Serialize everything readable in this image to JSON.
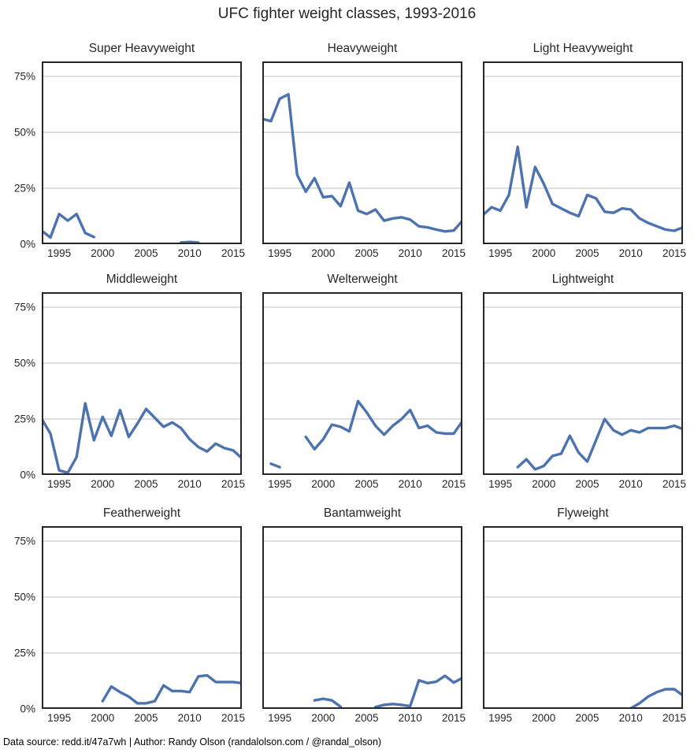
{
  "page": {
    "title": "UFC fighter weight classes, 1993-2016",
    "footer": "Data source: redd.it/47a7wh | Author: Randy Olson (randalolson.com / @randal_olson)"
  },
  "style": {
    "line_color": "#4c72b0",
    "grid_color": "#cccccc",
    "spine_color": "#262626",
    "background_color": "#ffffff"
  },
  "chart_data": {
    "type": "line",
    "layout": "3x3-small-multiples",
    "title": "UFC fighter weight classes, 1993-2016",
    "xlabel": "",
    "ylabel": "",
    "x_range": [
      1993,
      2016
    ],
    "ylim": [
      0,
      81.7
    ],
    "x_ticks": [
      1995,
      2000,
      2005,
      2010,
      2015
    ],
    "y_ticks": [
      {
        "value": 0,
        "label": "0%"
      },
      {
        "value": 25,
        "label": "25%"
      },
      {
        "value": 50,
        "label": "50%"
      },
      {
        "value": 75,
        "label": "75%"
      }
    ],
    "grid": "horizontal-only",
    "legend": "none",
    "charts": [
      {
        "title": "Super Heavyweight",
        "segments": [
          {
            "x": [
              1993,
              1994,
              1995,
              1996,
              1997,
              1998,
              1999
            ],
            "y": [
              6,
              3,
              13.5,
              10.5,
              13.5,
              5,
              3.2
            ]
          },
          {
            "x": [
              2009,
              2010,
              2011
            ],
            "y": [
              0.7,
              1,
              0.7
            ]
          }
        ]
      },
      {
        "title": "Heavyweight",
        "segments": [
          {
            "x": [
              1993,
              1994,
              1995,
              1996,
              1997,
              1998,
              1999,
              2000,
              2001,
              2002,
              2003,
              2004,
              2005,
              2006,
              2007,
              2008,
              2009,
              2010,
              2011,
              2012,
              2013,
              2014,
              2015,
              2016
            ],
            "y": [
              56,
              55,
              65,
              67,
              31,
              23.5,
              29.5,
              21,
              21.5,
              17,
              27.5,
              15,
              13.5,
              15.5,
              10.5,
              11.5,
              12,
              11,
              8,
              7.5,
              6.5,
              5.7,
              6.1,
              10.5
            ]
          }
        ]
      },
      {
        "title": "Light Heavyweight",
        "segments": [
          {
            "x": [
              1993,
              1994,
              1995,
              1996,
              1997,
              1998,
              1999,
              2000,
              2001,
              2002,
              2003,
              2004,
              2005,
              2006,
              2007,
              2008,
              2009,
              2010,
              2011,
              2012,
              2013,
              2014,
              2015,
              2016
            ],
            "y": [
              13,
              16.5,
              15,
              22,
              43.5,
              16.5,
              34.5,
              27,
              18,
              16,
              14,
              12.5,
              22,
              20.5,
              14.5,
              14,
              16,
              15.5,
              11.5,
              9.5,
              8,
              6.5,
              6,
              7.5
            ]
          }
        ]
      },
      {
        "title": "Middleweight",
        "segments": [
          {
            "x": [
              1993,
              1994,
              1995,
              1996,
              1997,
              1998,
              1999,
              2000,
              2001,
              2002,
              2003,
              2004,
              2005,
              2006,
              2007,
              2008,
              2009,
              2010,
              2011,
              2012,
              2013,
              2014,
              2015,
              2016
            ],
            "y": [
              25,
              18.5,
              2,
              1,
              8,
              32,
              15.5,
              26,
              17.5,
              29,
              17,
              23,
              29.5,
              25.5,
              21.5,
              23.5,
              21,
              16,
              12.5,
              10.5,
              14,
              12,
              11,
              7.5
            ]
          }
        ]
      },
      {
        "title": "Welterweight",
        "segments": [
          {
            "x": [
              1994,
              1995
            ],
            "y": [
              5,
              3.5
            ]
          },
          {
            "x": [
              1998,
              1999,
              2000,
              2001,
              2002,
              2003,
              2004,
              2005,
              2006,
              2007,
              2008,
              2009,
              2010,
              2011,
              2012,
              2013,
              2014,
              2015,
              2016
            ],
            "y": [
              17,
              11.5,
              16,
              22.5,
              21.5,
              19.5,
              33,
              28,
              22,
              18,
              22,
              25,
              29,
              21,
              22,
              19,
              18.5,
              18.5,
              24
            ]
          }
        ]
      },
      {
        "title": "Lightweight",
        "segments": [
          {
            "x": [
              1997,
              1998,
              1999,
              2000,
              2001,
              2002,
              2003,
              2004,
              2005,
              2006,
              2007,
              2008,
              2009,
              2010,
              2011,
              2012,
              2013,
              2014,
              2015,
              2016
            ],
            "y": [
              3.5,
              7,
              2.5,
              4,
              8.5,
              9.5,
              17.5,
              10,
              6,
              15.5,
              25,
              20,
              18,
              20,
              19,
              21,
              21,
              21,
              22,
              20.5
            ]
          }
        ]
      },
      {
        "title": "Featherweight",
        "segments": [
          {
            "x": [
              2000,
              2001,
              2002,
              2003,
              2004,
              2005,
              2006,
              2007,
              2008,
              2009,
              2010,
              2011,
              2012,
              2013,
              2014,
              2015,
              2016
            ],
            "y": [
              3.5,
              10,
              7.5,
              5.5,
              2.5,
              2.5,
              3.5,
              10.5,
              8,
              8,
              7.5,
              14.5,
              15,
              12,
              12,
              12,
              11.5
            ]
          }
        ]
      },
      {
        "title": "Bantamweight",
        "segments": [
          {
            "x": [
              1999,
              2000,
              2001,
              2002
            ],
            "y": [
              3.8,
              4.5,
              3.8,
              1
            ]
          },
          {
            "x": [
              2006,
              2007,
              2008,
              2009,
              2010,
              2011,
              2012,
              2013,
              2014,
              2015,
              2016
            ],
            "y": [
              0.8,
              1.8,
              2.2,
              1.8,
              1.2,
              12.8,
              11.5,
              12.2,
              14.8,
              11.8,
              13.8
            ]
          }
        ]
      },
      {
        "title": "Flyweight",
        "segments": [
          {
            "x": [
              2010,
              2011,
              2012,
              2013,
              2014,
              2015,
              2016
            ],
            "y": [
              0.2,
              2.5,
              5.5,
              7.5,
              8.8,
              8.8,
              6
            ]
          }
        ]
      }
    ]
  }
}
